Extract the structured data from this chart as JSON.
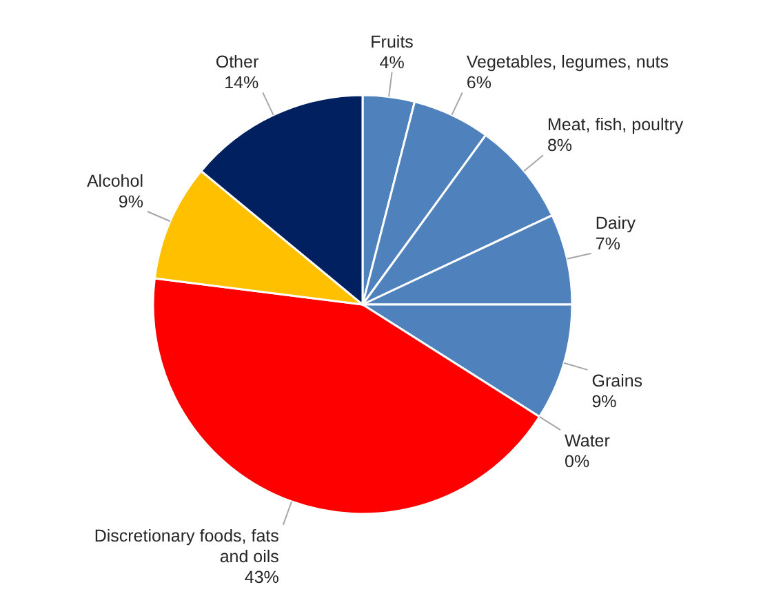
{
  "chart_data": {
    "type": "pie",
    "categories": [
      "Fruits",
      "Vegetables, legumes, nuts",
      "Meat, fish, poultry",
      "Dairy",
      "Grains",
      "Water",
      "Discretionary foods, fats and oils",
      "Alcohol",
      "Other"
    ],
    "values": [
      4,
      6,
      8,
      7,
      9,
      0,
      43,
      9,
      14
    ],
    "value_labels": [
      "4%",
      "6%",
      "8%",
      "7%",
      "9%",
      "0%",
      "43%",
      "9%",
      "14%"
    ],
    "colors": [
      "#4f81bd",
      "#4f81bd",
      "#4f81bd",
      "#4f81bd",
      "#4f81bd",
      "#4f81bd",
      "#ff0000",
      "#ffc000",
      "#002060"
    ]
  }
}
